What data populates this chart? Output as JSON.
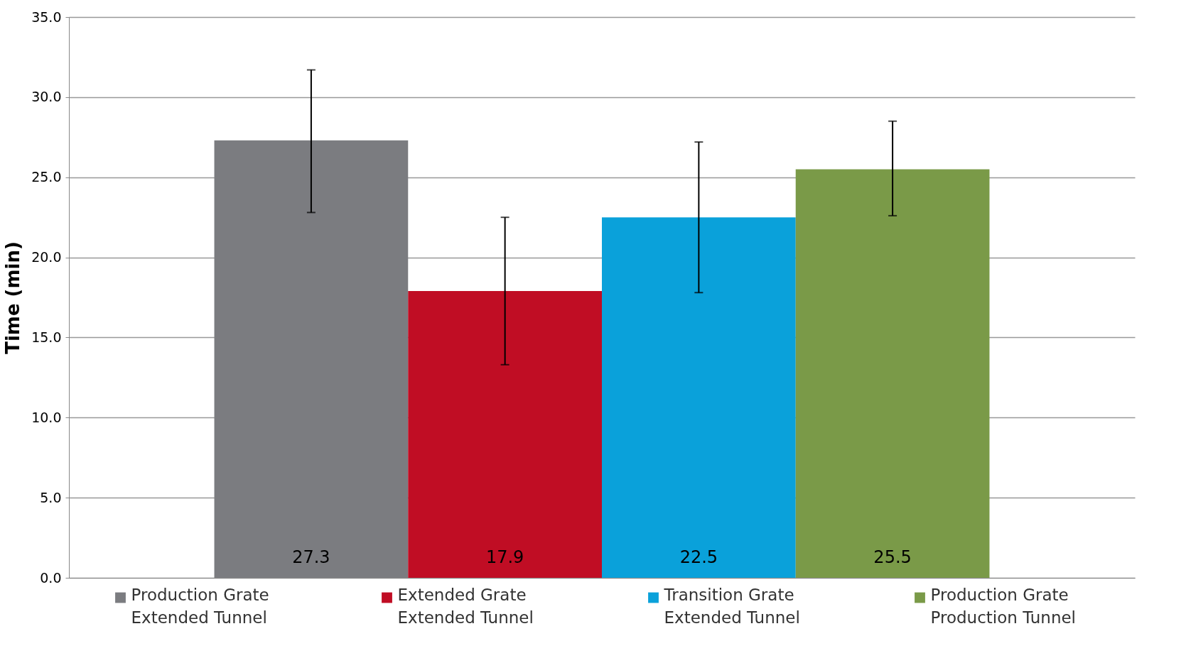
{
  "chart_data": {
    "type": "bar",
    "ylabel": "Time (min)",
    "categories": [
      null,
      null,
      null,
      null
    ],
    "series": [
      {
        "name": "Production Grate\nExtended Tunnel",
        "color": "#7b7c80",
        "values": [
          27.3,
          null,
          null,
          null
        ],
        "errors": [
          [
            22.8,
            31.7
          ],
          null,
          null,
          null
        ]
      },
      {
        "name": "Extended Grate\nExtended Tunnel",
        "color": "#c00d24",
        "values": [
          null,
          17.9,
          null,
          null
        ],
        "errors": [
          null,
          [
            13.3,
            22.5
          ],
          null,
          null
        ]
      },
      {
        "name": "Transition Grate\nExtended Tunnel",
        "color": "#0aa1da",
        "values": [
          null,
          null,
          22.5,
          null
        ],
        "errors": [
          null,
          null,
          [
            17.8,
            27.2
          ],
          null
        ]
      },
      {
        "name": "Production Grate\nProduction Tunnel",
        "color": "#7a9a48",
        "values": [
          null,
          null,
          null,
          25.5
        ],
        "errors": [
          null,
          null,
          null,
          [
            22.6,
            28.5
          ]
        ]
      }
    ],
    "ylim": [
      0,
      35
    ],
    "yticks": [
      {
        "value": 0,
        "label": "0.0"
      },
      {
        "value": 5,
        "label": "5.0"
      },
      {
        "value": 10,
        "label": "10.0"
      },
      {
        "value": 15,
        "label": "15.0"
      },
      {
        "value": 20,
        "label": "20.0"
      },
      {
        "value": 25,
        "label": "25.0"
      },
      {
        "value": 30,
        "label": "30.0"
      },
      {
        "value": 35,
        "label": "35.0"
      }
    ],
    "grid": "y",
    "legend": "bottom",
    "data_labels": true,
    "tick_labels": "y"
  }
}
